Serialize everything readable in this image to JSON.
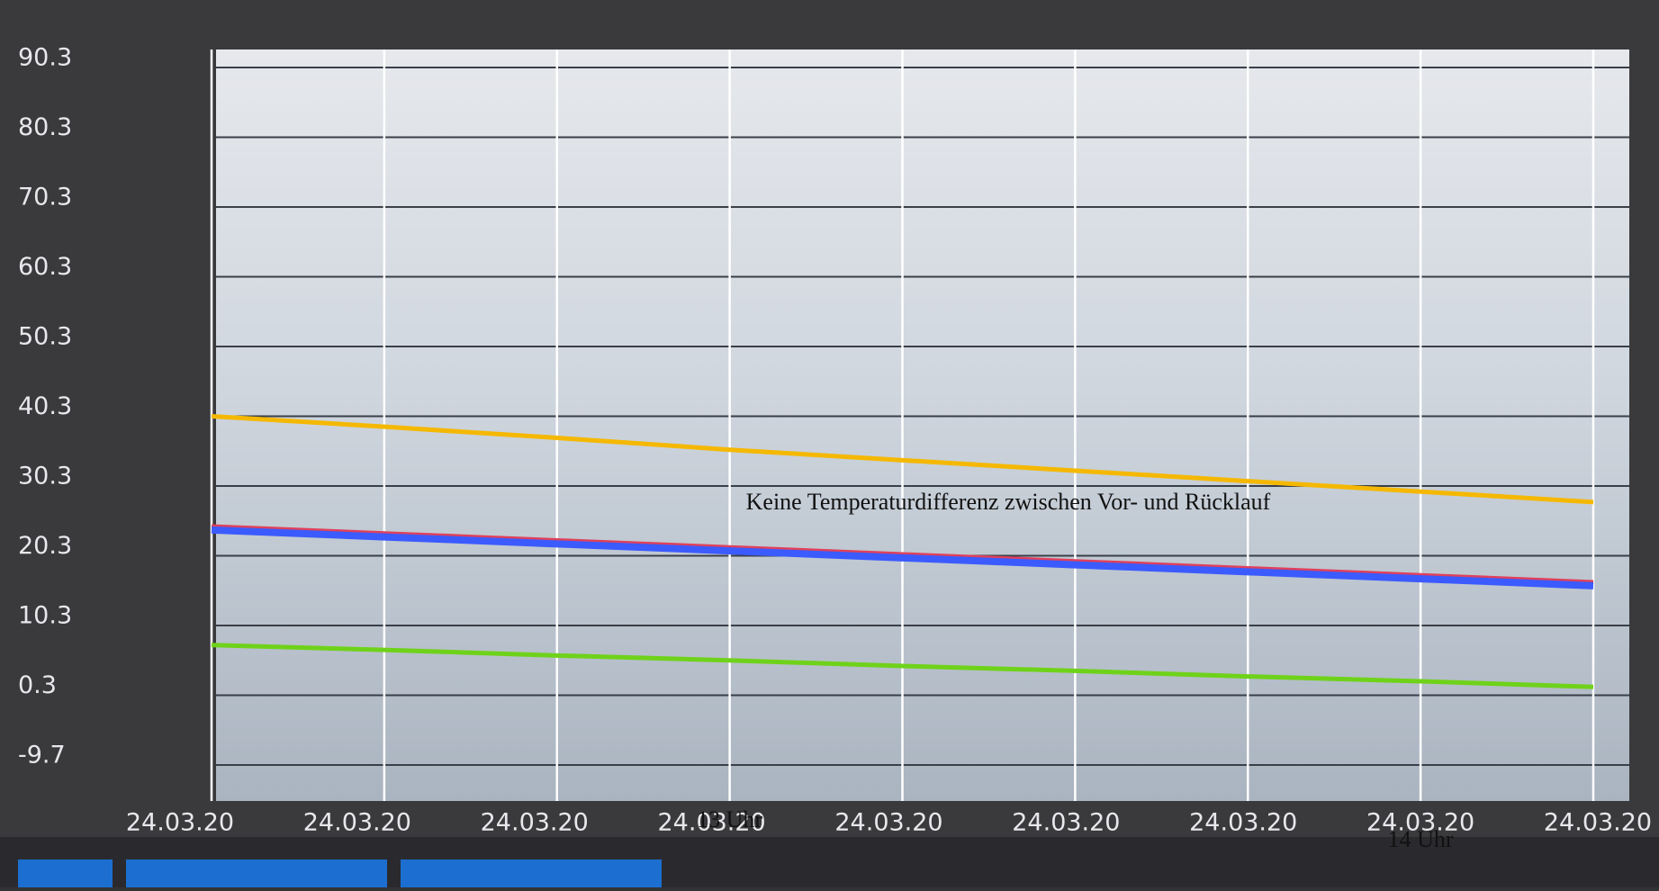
{
  "chart_data": {
    "type": "line",
    "categories": [
      "24.03.20",
      "24.03.20",
      "24.03.20",
      "24.03.20",
      "24.03.20",
      "24.03.20",
      "24.03.20",
      "24.03.20",
      "24.03.20"
    ],
    "series": [
      {
        "color": "#f5b800",
        "values": [
          40.3,
          38.8,
          37.2,
          35.5,
          34.0,
          32.5,
          31.0,
          29.5,
          28.0
        ]
      },
      {
        "color": "#e0405a",
        "values": [
          24.5,
          23.5,
          22.5,
          21.5,
          20.5,
          19.5,
          18.5,
          17.5,
          16.5
        ]
      },
      {
        "color": "#3b5bff",
        "values": [
          24.0,
          23.0,
          22.0,
          21.0,
          20.0,
          19.0,
          18.0,
          17.0,
          16.0
        ]
      },
      {
        "color": "#6fd21a",
        "values": [
          7.5,
          6.8,
          6.0,
          5.3,
          4.5,
          3.8,
          3.0,
          2.3,
          1.5
        ]
      }
    ],
    "ylim": [
      -9.7,
      90.3
    ],
    "yticks": [
      -9.7,
      0.3,
      10.3,
      20.3,
      30.3,
      40.3,
      50.3,
      60.3,
      70.3,
      80.3,
      90.3
    ],
    "grid": true,
    "annotations": [
      "Keine Temperaturdifferenz zwischen Vor- und Rücklauf",
      "13 Uhr",
      "14 Uhr"
    ]
  }
}
